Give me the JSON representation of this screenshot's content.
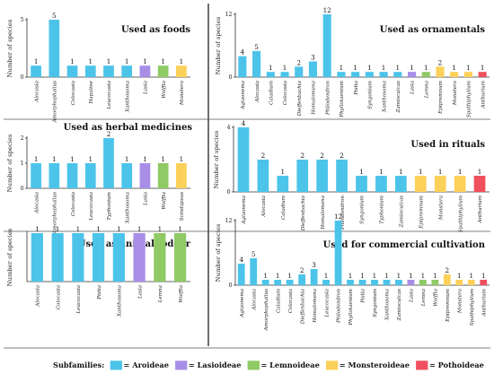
{
  "colors": {
    "Aroideae": "#4cc4ea",
    "Lasioideae": "#a98ee8",
    "Lemnoideae": "#8fca64",
    "Monsteroideae": "#fcd15a",
    "Pothoideae": "#f0505e"
  },
  "legend": {
    "title": "Subfamilies:",
    "items": [
      {
        "key": "Aroideae",
        "label": "= Aroideae"
      },
      {
        "key": "Lasioideae",
        "label": "= Lasioideae"
      },
      {
        "key": "Lemnoideae",
        "label": "= Lemnoideae"
      },
      {
        "key": "Monsteroideae",
        "label": "= Monsteroideae"
      },
      {
        "key": "Pothoideae",
        "label": "= Pothoideae"
      }
    ]
  },
  "chart_data": [
    {
      "type": "bar",
      "title": "Used as foods",
      "ylabel": "Number of species",
      "ylim": [
        0,
        5
      ],
      "yticks": [
        0,
        5
      ],
      "categories": [
        "Alocasia",
        "Amorphophallus",
        "Colocasia",
        "Hapaline",
        "Leucocasia",
        "Xanthosoma",
        "Lasia",
        "Wolffia",
        "Monstera"
      ],
      "values": [
        1,
        5,
        1,
        1,
        1,
        1,
        1,
        1,
        1
      ],
      "subfamilies": [
        "Aroideae",
        "Aroideae",
        "Aroideae",
        "Aroideae",
        "Aroideae",
        "Aroideae",
        "Lasioideae",
        "Lemnoideae",
        "Monsteroideae"
      ]
    },
    {
      "type": "bar",
      "title": "Used as ornamentals",
      "ylabel": "Number of species",
      "ylim": [
        0,
        12
      ],
      "yticks": [
        0,
        12
      ],
      "categories": [
        "Aglaonema",
        "Alocasia",
        "Caladium",
        "Colocasia",
        "Dieffenbachia",
        "Homalomena",
        "Philodendron",
        "Phyllotaenium",
        "Pistia",
        "Syngonium",
        "Xanthosoma",
        "Zamioculcas",
        "Lasia",
        "Lemna",
        "Epipremnum",
        "Monstera",
        "Spathiphyllum",
        "Anthurium"
      ],
      "values": [
        4,
        5,
        1,
        1,
        2,
        3,
        12,
        1,
        1,
        1,
        1,
        1,
        1,
        1,
        2,
        1,
        1,
        1
      ],
      "subfamilies": [
        "Aroideae",
        "Aroideae",
        "Aroideae",
        "Aroideae",
        "Aroideae",
        "Aroideae",
        "Aroideae",
        "Aroideae",
        "Aroideae",
        "Aroideae",
        "Aroideae",
        "Aroideae",
        "Lasioideae",
        "Lemnoideae",
        "Monsteroideae",
        "Monsteroideae",
        "Monsteroideae",
        "Pothoideae"
      ]
    },
    {
      "type": "bar",
      "title": "Used as herbal medicines",
      "ylabel": "Number of species",
      "ylim": [
        0,
        2
      ],
      "yticks": [
        0,
        1,
        2
      ],
      "categories": [
        "Alocasia",
        "Amorphophallus",
        "Colocasia",
        "Leucocasia",
        "Typhonium",
        "Xanthosoma",
        "Lasia",
        "Wolffia",
        "Scindapsus"
      ],
      "values": [
        1,
        1,
        1,
        1,
        2,
        1,
        1,
        1,
        1
      ],
      "subfamilies": [
        "Aroideae",
        "Aroideae",
        "Aroideae",
        "Aroideae",
        "Aroideae",
        "Aroideae",
        "Lasioideae",
        "Lemnoideae",
        "Monsteroideae"
      ]
    },
    {
      "type": "bar",
      "title": "Used in rituals",
      "ylabel": "Number of species",
      "ylim": [
        0,
        4
      ],
      "yticks": [
        0,
        4
      ],
      "categories": [
        "Aglaonema",
        "Alocasia",
        "Caladium",
        "Dieffenbachia",
        "Homalomena",
        "Philodendron",
        "Syngonium",
        "Typhonium",
        "Zamioculcas",
        "Epipremnum",
        "Monstera",
        "Spathiphyllum",
        "Anthurium"
      ],
      "values": [
        4,
        2,
        1,
        2,
        2,
        2,
        1,
        1,
        1,
        1,
        1,
        1,
        1
      ],
      "subfamilies": [
        "Aroideae",
        "Aroideae",
        "Aroideae",
        "Aroideae",
        "Aroideae",
        "Aroideae",
        "Aroideae",
        "Aroideae",
        "Aroideae",
        "Monsteroideae",
        "Monsteroideae",
        "Monsteroideae",
        "Pothoideae"
      ]
    },
    {
      "type": "bar",
      "title": "Used as animal fodder",
      "ylabel": "Number of species",
      "ylim": [
        0,
        1
      ],
      "yticks": [],
      "categories": [
        "Alocasia",
        "Colocasia",
        "Leucocasia",
        "Pistia",
        "Xanthosoma",
        "Lasia",
        "Lemna",
        "Wolffia"
      ],
      "values": [
        1,
        1,
        1,
        1,
        1,
        1,
        1,
        1
      ],
      "subfamilies": [
        "Aroideae",
        "Aroideae",
        "Aroideae",
        "Aroideae",
        "Aroideae",
        "Lasioideae",
        "Lemnoideae",
        "Lemnoideae"
      ]
    },
    {
      "type": "bar",
      "title": "Used for commercial cultivation",
      "ylabel": "Number of species",
      "ylim": [
        0,
        12
      ],
      "yticks": [
        0,
        12
      ],
      "categories": [
        "Aglaonema",
        "Alocasia",
        "Amorphophallus",
        "Caladium",
        "Colocasia",
        "Dieffenbachia",
        "Homalomena",
        "Leucocasia",
        "Philodendron",
        "Phyllotaenium",
        "Pistia",
        "Syngonium",
        "Xanthosoma",
        "Zamioculcas",
        "Lasia",
        "Lemna",
        "Wolffia",
        "Epipremnum",
        "Monstera",
        "Spathiphyllum",
        "Anthurium"
      ],
      "values": [
        4,
        5,
        1,
        1,
        1,
        2,
        3,
        1,
        12,
        1,
        1,
        1,
        1,
        1,
        1,
        1,
        1,
        2,
        1,
        1,
        1
      ],
      "subfamilies": [
        "Aroideae",
        "Aroideae",
        "Aroideae",
        "Aroideae",
        "Aroideae",
        "Aroideae",
        "Aroideae",
        "Aroideae",
        "Aroideae",
        "Aroideae",
        "Aroideae",
        "Aroideae",
        "Aroideae",
        "Aroideae",
        "Lasioideae",
        "Lemnoideae",
        "Lemnoideae",
        "Monsteroideae",
        "Monsteroideae",
        "Monsteroideae",
        "Pothoideae"
      ]
    }
  ]
}
